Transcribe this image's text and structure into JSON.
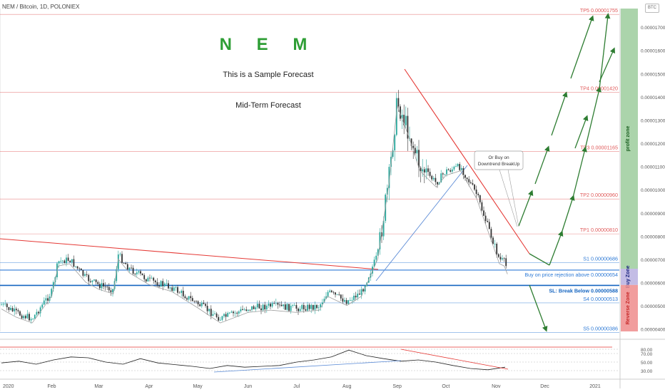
{
  "header": {
    "symbol": "NEM / Bitcoin, 1D, POLONIEX",
    "currency": "BTC"
  },
  "chart_data": {
    "type": "candlestick",
    "title": "N E M",
    "subtitle": "This is a Sample Forecast",
    "caption": "Mid-Term Forecast",
    "x_ticks": [
      "2020",
      "Feb",
      "Mar",
      "Apr",
      "May",
      "Jun",
      "Jul",
      "Aug",
      "Sep",
      "Oct",
      "Nov",
      "Dec",
      "2021"
    ],
    "y_ticks": [
      "0.00001700",
      "0.00001600",
      "0.00001500",
      "0.00001400",
      "0.00001300",
      "0.00001200",
      "0.00001100",
      "0.00001000",
      "0.00000900",
      "0.00000800",
      "0.00000700",
      "0.00000600",
      "0.00000500",
      "0.00000400"
    ],
    "y_range": [
      3.9e-06,
      1.78e-05
    ],
    "price_series": [
      [
        "2020-01-01",
        5.05e-06
      ],
      [
        "2020-01-10",
        4.7e-06
      ],
      [
        "2020-01-20",
        4.45e-06
      ],
      [
        "2020-02-01",
        5.6e-06
      ],
      [
        "2020-02-05",
        6.9e-06
      ],
      [
        "2020-02-12",
        7e-06
      ],
      [
        "2020-02-22",
        6.2e-06
      ],
      [
        "2020-03-01",
        5.9e-06
      ],
      [
        "2020-03-10",
        5.7e-06
      ],
      [
        "2020-03-13",
        7.2e-06
      ],
      [
        "2020-03-20",
        6.6e-06
      ],
      [
        "2020-04-01",
        6.1e-06
      ],
      [
        "2020-04-15",
        5.8e-06
      ],
      [
        "2020-05-01",
        5.1e-06
      ],
      [
        "2020-05-15",
        4.45e-06
      ],
      [
        "2020-06-01",
        4.9e-06
      ],
      [
        "2020-06-15",
        5e-06
      ],
      [
        "2020-07-01",
        4.9e-06
      ],
      [
        "2020-07-15",
        5e-06
      ],
      [
        "2020-07-20",
        5.6e-06
      ],
      [
        "2020-08-01",
        5.2e-06
      ],
      [
        "2020-08-10",
        5.6e-06
      ],
      [
        "2020-08-20",
        7.2e-06
      ],
      [
        "2020-08-27",
        1.05e-05
      ],
      [
        "2020-09-01",
        1.38e-05
      ],
      [
        "2020-09-08",
        1.25e-05
      ],
      [
        "2020-09-15",
        1.1e-05
      ],
      [
        "2020-09-25",
        1.03e-05
      ],
      [
        "2020-10-01",
        1.08e-05
      ],
      [
        "2020-10-10",
        1.1e-05
      ],
      [
        "2020-10-20",
        9.8e-06
      ],
      [
        "2020-10-28",
        8.2e-06
      ],
      [
        "2020-11-03",
        7e-06
      ],
      [
        "2020-11-06",
        6.9e-06
      ],
      [
        "2020-11-08",
        6.55e-06
      ]
    ],
    "levels": [
      {
        "label": "TP5 0.00001755",
        "value": 1.755e-05,
        "color": "#e05a5a"
      },
      {
        "label": "TP4 0.00001420",
        "value": 1.42e-05,
        "color": "#e05a5a"
      },
      {
        "label": "TP3 0.00001165",
        "value": 1.165e-05,
        "color": "#e05a5a"
      },
      {
        "label": "TP2 0.00000960",
        "value": 9.6e-06,
        "color": "#e05a5a"
      },
      {
        "label": "TP1 0.00000810",
        "value": 8.1e-06,
        "color": "#e05a5a"
      },
      {
        "label": "S1 0.00000686",
        "value": 6.86e-06,
        "color": "#2f7bd6"
      },
      {
        "label": "Buy on price rejection above 0.00000654",
        "value": 6.54e-06,
        "color": "#2f7bd6"
      },
      {
        "label": "SL: Break Below 0.00000588",
        "value": 5.88e-06,
        "color": "#1565c0"
      },
      {
        "label": "S4 0.00000513",
        "value": 5.13e-06,
        "color": "#2f7bd6"
      },
      {
        "label": "S5 0.00000386",
        "value": 3.86e-06,
        "color": "#2f7bd6"
      }
    ],
    "callout": "Or Buy on\nDowntrend BreakUp",
    "zones": [
      {
        "label": "profit zone",
        "color": "#9ccc9c",
        "from": 6.6e-06,
        "to": 1.78e-05
      },
      {
        "label": "Buy Zone",
        "color": "#b8b0e0",
        "from": 5.9e-06,
        "to": 6.6e-06
      },
      {
        "label": "Reverse Zone",
        "color": "#ef8c8c",
        "from": 3.9e-06,
        "to": 5.9e-06
      }
    ],
    "rsi": {
      "ticks": [
        "80.00",
        "70.00",
        "50.00",
        "30.00"
      ],
      "values": [
        48,
        52,
        45,
        55,
        62,
        60,
        50,
        45,
        58,
        48,
        44,
        40,
        35,
        42,
        38,
        40,
        42,
        50,
        55,
        62,
        78,
        65,
        58,
        52,
        55,
        50,
        42,
        35,
        32,
        38
      ]
    }
  }
}
